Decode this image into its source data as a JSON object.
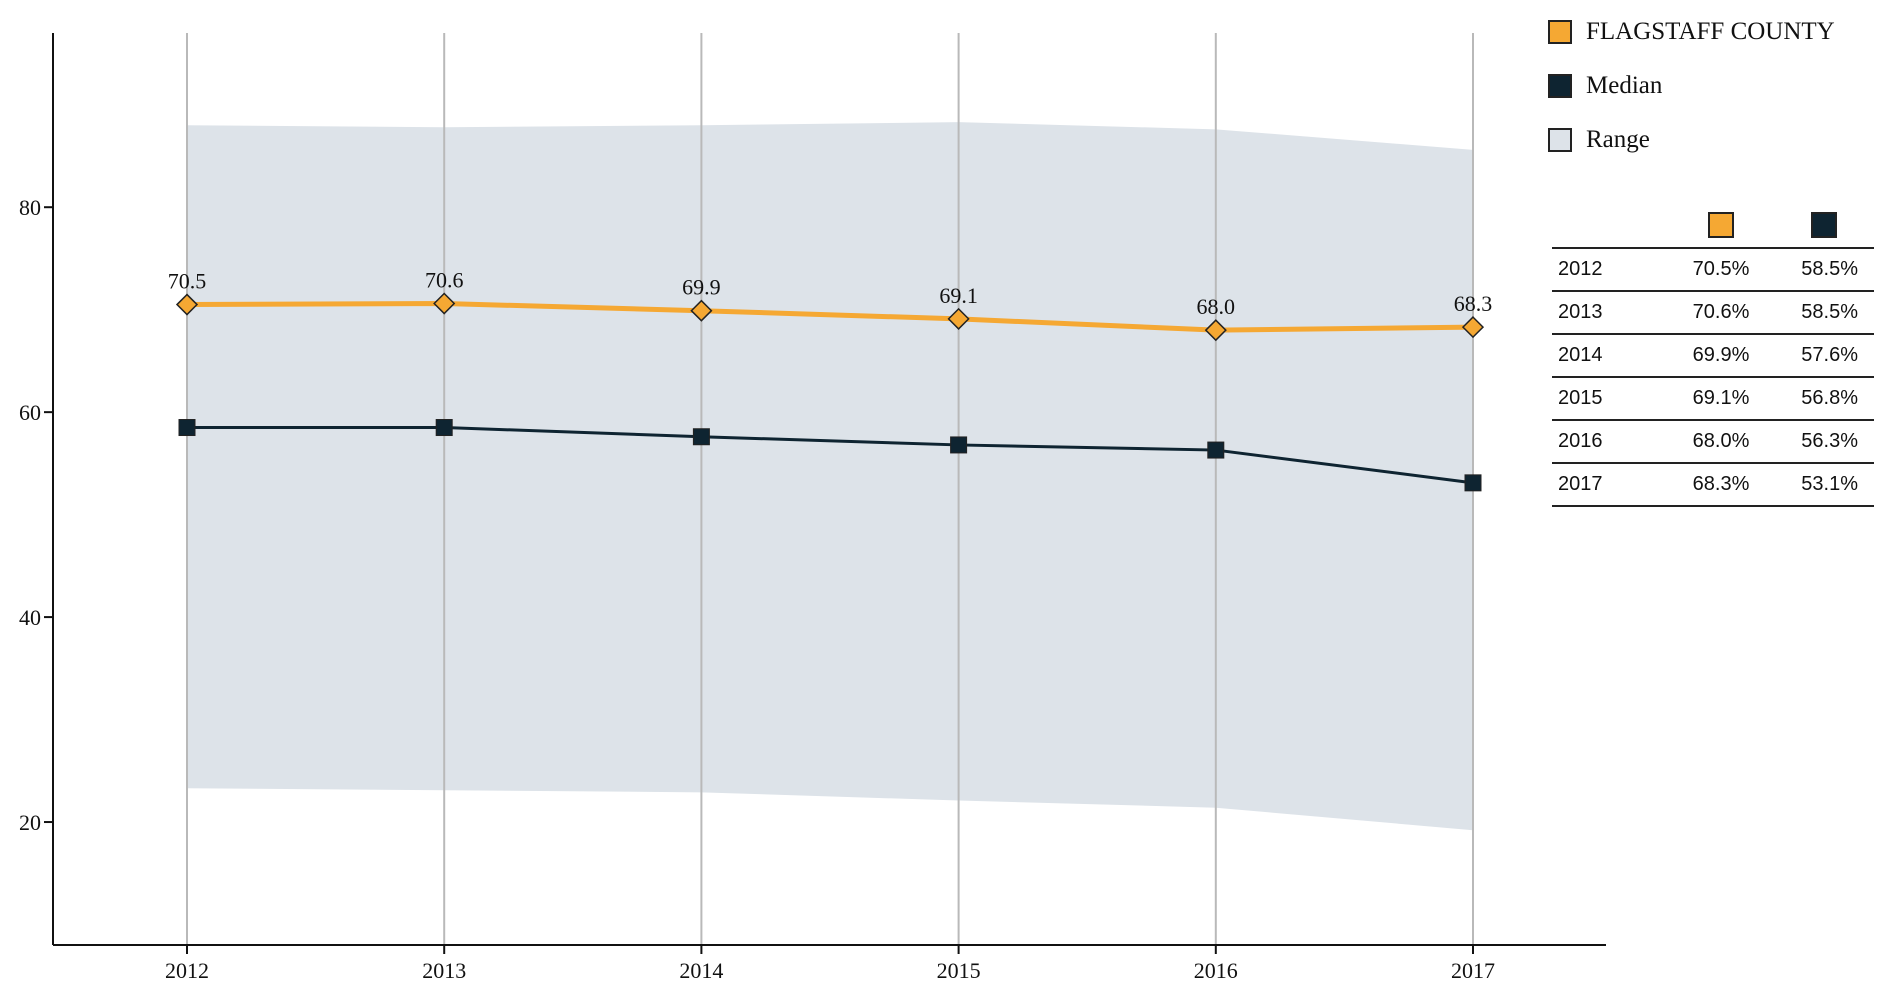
{
  "chart_data": {
    "type": "line",
    "x": [
      "2012",
      "2013",
      "2014",
      "2015",
      "2016",
      "2017"
    ],
    "ylim": [
      8,
      97
    ],
    "yticks": [
      20,
      40,
      60,
      80
    ],
    "grid": "vertical",
    "legend_position": "top-right",
    "series": [
      {
        "name": "FLAGSTAFF COUNTY",
        "values": [
          70.5,
          70.6,
          69.9,
          69.1,
          68.0,
          68.3
        ],
        "labels": [
          "70.5",
          "70.6",
          "69.9",
          "69.1",
          "68.0",
          "68.3"
        ],
        "color": "#F5A833",
        "marker": "diamond"
      },
      {
        "name": "Median",
        "values": [
          58.5,
          58.5,
          57.6,
          56.8,
          56.3,
          53.1
        ],
        "color": "#0E2431",
        "marker": "square"
      }
    ],
    "range": {
      "name": "Range",
      "upper": [
        88.0,
        87.8,
        88.0,
        88.3,
        87.6,
        85.6
      ],
      "lower": [
        23.3,
        23.1,
        22.9,
        22.1,
        21.4,
        19.2
      ],
      "color": "#DDE3E9"
    }
  },
  "legend": [
    {
      "label": "FLAGSTAFF COUNTY",
      "color": "#F5A833"
    },
    {
      "label": "Median",
      "color": "#0E2431"
    },
    {
      "label": "Range",
      "color": "#DDE3E9"
    }
  ],
  "table": {
    "rows": [
      {
        "year": "2012",
        "county": "70.5%",
        "median": "58.5%"
      },
      {
        "year": "2013",
        "county": "70.6%",
        "median": "58.5%"
      },
      {
        "year": "2014",
        "county": "69.9%",
        "median": "57.6%"
      },
      {
        "year": "2015",
        "county": "69.1%",
        "median": "56.8%"
      },
      {
        "year": "2016",
        "county": "68.0%",
        "median": "56.3%"
      },
      {
        "year": "2017",
        "county": "68.3%",
        "median": "53.1%"
      }
    ]
  }
}
